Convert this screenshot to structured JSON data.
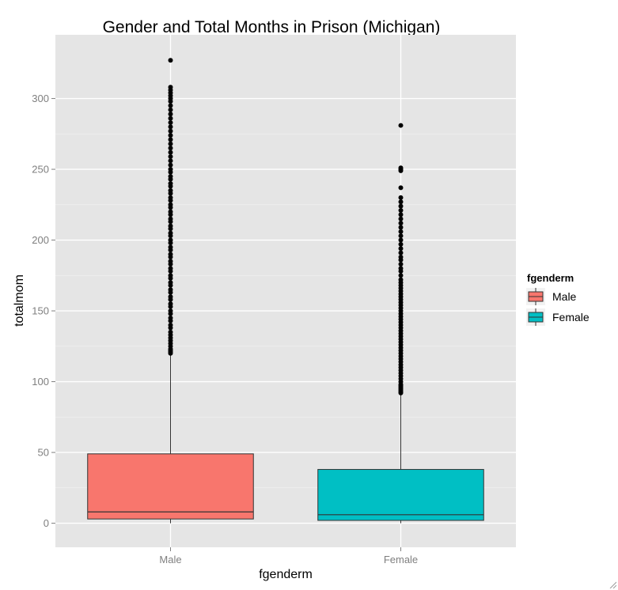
{
  "chart_data": {
    "type": "box",
    "title": "Gender and Total Months in Prison (Michigan)",
    "xlabel": "fgenderm",
    "ylabel": "totalmom",
    "categories": [
      "Male",
      "Female"
    ],
    "yticks": [
      0,
      50,
      100,
      150,
      200,
      250,
      300
    ],
    "ylim": [
      -17,
      345
    ],
    "grid": true,
    "legend": {
      "title": "fgenderm",
      "position": "right",
      "entries": [
        "Male",
        "Female"
      ]
    },
    "series": [
      {
        "category": "Male",
        "color": "#F8766D",
        "min": 0,
        "q1": 3,
        "median": 8,
        "q3": 49,
        "whisker_high": 119,
        "outliers": [
          120,
          121,
          122,
          123,
          125,
          127,
          129,
          131,
          133,
          135,
          138,
          140,
          143,
          145,
          148,
          150,
          153,
          155,
          158,
          160,
          163,
          165,
          168,
          170,
          173,
          175,
          178,
          180,
          183,
          185,
          188,
          190,
          193,
          195,
          198,
          200,
          203,
          205,
          208,
          210,
          213,
          215,
          218,
          220,
          223,
          225,
          228,
          230,
          233,
          235,
          238,
          240,
          243,
          245,
          248,
          250,
          253,
          256,
          259,
          262,
          265,
          268,
          271,
          274,
          277,
          280,
          283,
          286,
          289,
          292,
          295,
          298,
          300,
          302,
          304,
          306,
          308,
          327
        ]
      },
      {
        "category": "Female",
        "color": "#00BFC4",
        "min": 0,
        "q1": 2,
        "median": 6,
        "q3": 38,
        "whisker_high": 91,
        "outliers": [
          92,
          93,
          94,
          95,
          96,
          97,
          98,
          100,
          102,
          104,
          106,
          108,
          110,
          112,
          114,
          116,
          118,
          120,
          122,
          124,
          126,
          128,
          130,
          132,
          134,
          136,
          138,
          140,
          142,
          144,
          146,
          148,
          150,
          152,
          154,
          156,
          158,
          160,
          162,
          164,
          166,
          168,
          170,
          172,
          175,
          178,
          180,
          183,
          186,
          188,
          191,
          194,
          197,
          200,
          203,
          206,
          209,
          212,
          215,
          218,
          221,
          224,
          227,
          230,
          237,
          249,
          250,
          251,
          281
        ]
      }
    ]
  }
}
